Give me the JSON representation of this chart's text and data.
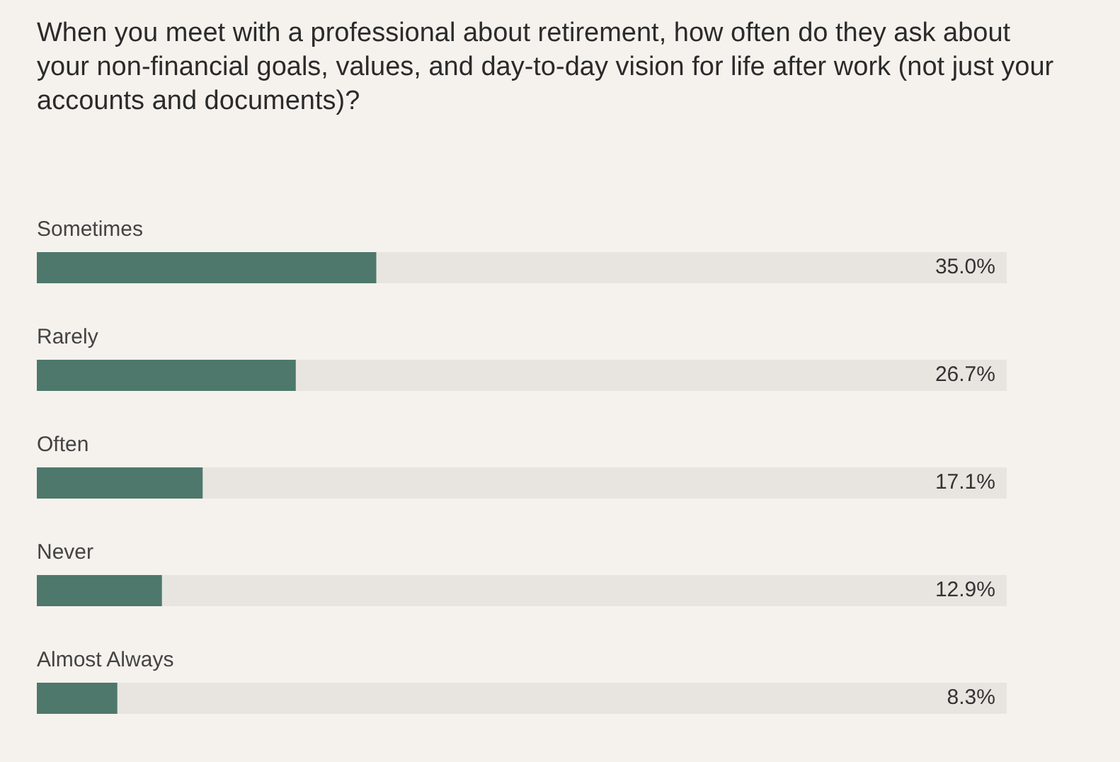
{
  "chart_data": {
    "type": "bar",
    "orientation": "horizontal",
    "title": "When you meet with a professional about retirement, how often do they ask about your non-financial goals, values, and day-to-day vision for life after work (not just your accounts and documents)?",
    "categories": [
      "Sometimes",
      "Rarely",
      "Often",
      "Never",
      "Almost Always"
    ],
    "values": [
      35.0,
      26.7,
      17.1,
      12.9,
      8.3
    ],
    "value_labels": [
      "35.0%",
      "26.7%",
      "17.1%",
      "12.9%",
      "8.3%"
    ],
    "color": "#4e786c",
    "xlim": [
      0,
      100
    ],
    "tick_labels": false
  }
}
